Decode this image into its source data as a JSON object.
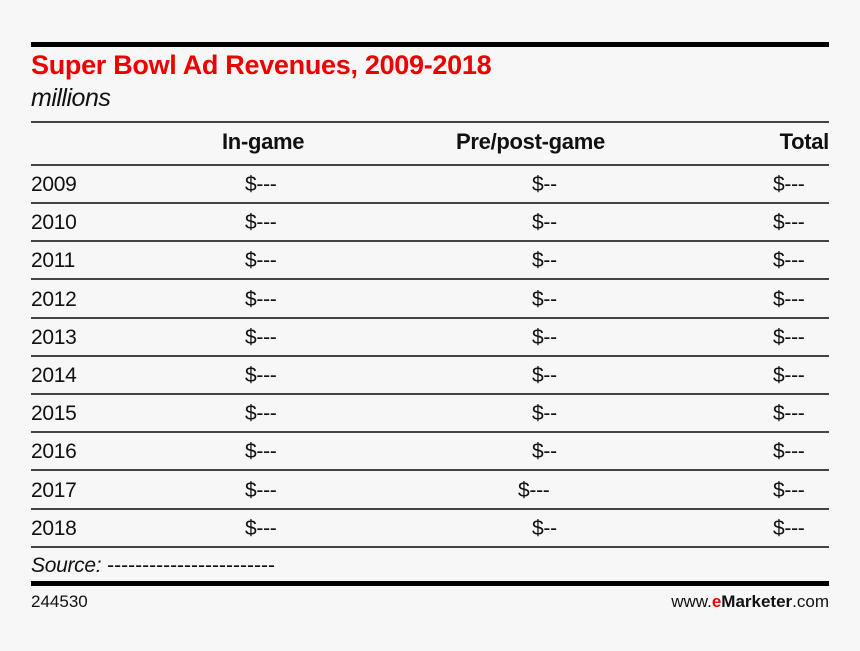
{
  "chart_data": {
    "type": "table",
    "title": "Super Bowl Ad Revenues, 2009-2018",
    "subtitle": "millions",
    "columns": [
      "",
      "In-game",
      "Pre/post-game",
      "Total"
    ],
    "rows": [
      {
        "year": "2009",
        "in_game": "$---",
        "pre_post": "$--",
        "total": "$---"
      },
      {
        "year": "2010",
        "in_game": "$---",
        "pre_post": "$--",
        "total": "$---"
      },
      {
        "year": "2011",
        "in_game": "$---",
        "pre_post": "$--",
        "total": "$---"
      },
      {
        "year": "2012",
        "in_game": "$---",
        "pre_post": "$--",
        "total": "$---"
      },
      {
        "year": "2013",
        "in_game": "$---",
        "pre_post": "$--",
        "total": "$---"
      },
      {
        "year": "2014",
        "in_game": "$---",
        "pre_post": "$--",
        "total": "$---"
      },
      {
        "year": "2015",
        "in_game": "$---",
        "pre_post": "$--",
        "total": "$---"
      },
      {
        "year": "2016",
        "in_game": "$---",
        "pre_post": "$--",
        "total": "$---"
      },
      {
        "year": "2017",
        "in_game": "$---",
        "pre_post": "$---",
        "total": "$---"
      },
      {
        "year": "2018",
        "in_game": "$---",
        "pre_post": "$--",
        "total": "$---"
      }
    ],
    "source_label": "Source:",
    "source_value": "------------------------"
  },
  "footer": {
    "id": "244530",
    "url_prefix": "www.",
    "brand_e": "e",
    "brand_rest": "Marketer",
    "url_suffix": ".com"
  },
  "colors": {
    "accent": "#ee0000"
  }
}
